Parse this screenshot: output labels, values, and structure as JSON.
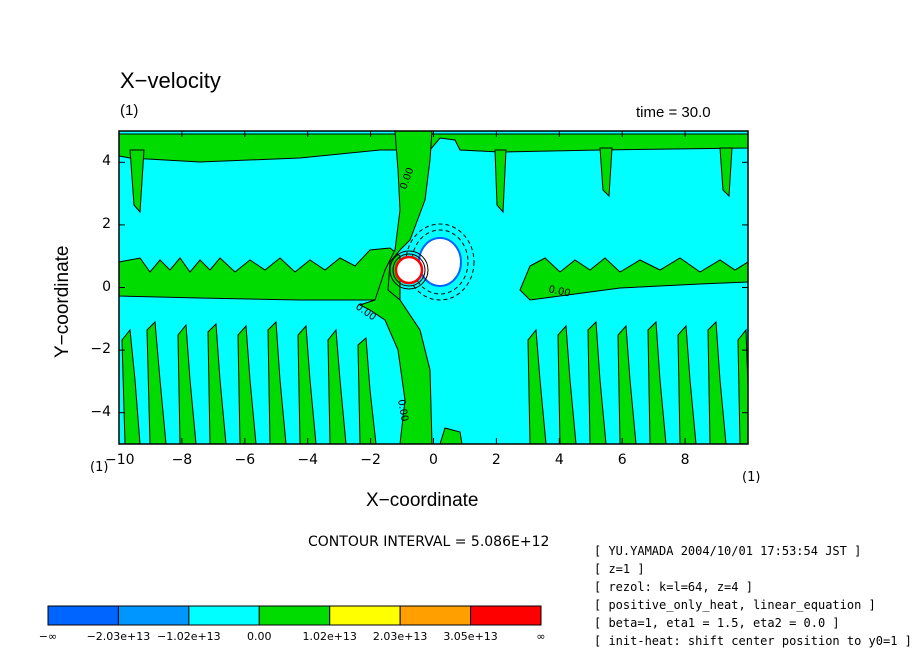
{
  "chart_data": {
    "type": "heatmap",
    "title": "X−velocity",
    "subtitle_left": "(1)",
    "time_label": "time = 30.0",
    "xlabel": "X−coordinate",
    "ylabel": "Y−coordinate",
    "x_unit_left": "(1)",
    "x_unit_right": "(1)",
    "xlim": [
      -10,
      10
    ],
    "ylim": [
      -5,
      5
    ],
    "xticks": [
      -10,
      -8,
      -6,
      -4,
      -2,
      0,
      2,
      4,
      6,
      8
    ],
    "yticks": [
      -4,
      -2,
      0,
      2,
      4
    ],
    "xtick_labels": [
      "−10",
      "−8",
      "−6",
      "−4",
      "−2",
      "0",
      "2",
      "4",
      "6",
      "8"
    ],
    "ytick_labels": [
      "−4",
      "−2",
      "0",
      "2",
      "4"
    ],
    "contour_interval": "CONTOUR INTERVAL = 5.086E+12",
    "contour_labels": [
      "0.00",
      "0.00",
      "0.00",
      "0.00"
    ],
    "colorbar": {
      "labels": [
        "−∞",
        "−2.03e+13",
        "−1.02e+13",
        "0.00",
        "1.02e+13",
        "2.03e+13",
        "3.05e+13",
        "∞"
      ],
      "colors": [
        "#0064ff",
        "#0096ff",
        "#00ffff",
        "#00dc00",
        "#ffff00",
        "#ffa000",
        "#ff0000"
      ]
    }
  },
  "info_lines": [
    "[ YU.YAMADA 2004/10/01 17:53:54 JST ]",
    "[ z=1 ]",
    "[ rezol: k=l=64, z=4 ]",
    "[ positive_only_heat, linear_equation ]",
    "[ beta=1, eta1 = 1.5, eta2 = 0.0 ]",
    "[ init-heat: shift center position to y0=1 ]"
  ]
}
